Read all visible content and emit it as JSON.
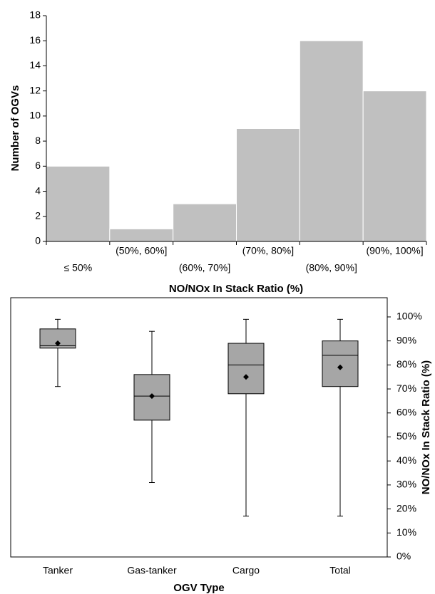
{
  "chart_data": [
    {
      "type": "bar",
      "x_label": "NO/NOx In Stack Ratio (%)",
      "y_label": "Number of OGVs",
      "categories": [
        "≤ 50%",
        "(50%, 60%]",
        "(60%, 70%]",
        "(70%, 80%]",
        "(80%, 90%]",
        "(90%, 100%]"
      ],
      "values": [
        6,
        1,
        3,
        9,
        16,
        12
      ],
      "color": "#c0c0c0",
      "ylim": [
        0,
        18
      ],
      "yticks": [
        0,
        2,
        4,
        6,
        8,
        10,
        12,
        14,
        16,
        18
      ]
    },
    {
      "type": "box",
      "x_label": "OGV Type",
      "y2_label": "NO/NOx In Stack Ratio (%)",
      "categories": [
        "Tanker",
        "Gas-tanker",
        "Cargo",
        "Total"
      ],
      "min": [
        71,
        31,
        17,
        17
      ],
      "q1": [
        87,
        57,
        68,
        71
      ],
      "median": [
        88,
        67,
        80,
        84
      ],
      "q3": [
        95,
        76,
        89,
        90
      ],
      "max": [
        99,
        94,
        99,
        99
      ],
      "mean": [
        89,
        67,
        75,
        79
      ],
      "color": "#a6a6a6",
      "y2lim": [
        0,
        108
      ],
      "y2ticks": [
        {
          "value": 0,
          "label": "0%"
        },
        {
          "value": 10,
          "label": "10%"
        },
        {
          "value": 20,
          "label": "20%"
        },
        {
          "value": 30,
          "label": "30%"
        },
        {
          "value": 40,
          "label": "40%"
        },
        {
          "value": 50,
          "label": "50%"
        },
        {
          "value": 60,
          "label": "60%"
        },
        {
          "value": 70,
          "label": "70%"
        },
        {
          "value": 80,
          "label": "80%"
        },
        {
          "value": 90,
          "label": "90%"
        },
        {
          "value": 100,
          "label": "100%"
        }
      ]
    }
  ]
}
